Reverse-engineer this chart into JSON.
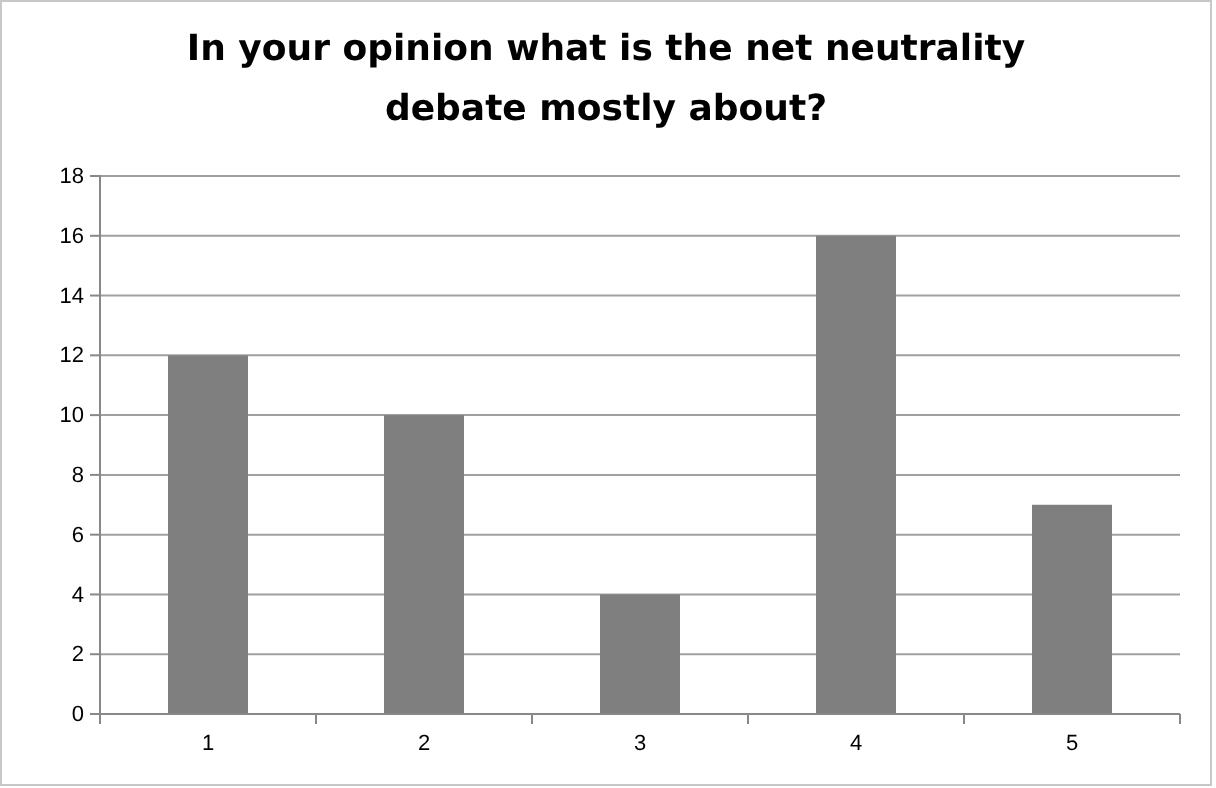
{
  "chart_data": {
    "type": "bar",
    "title": "In your opinion what is the net neutrality debate mostly about?",
    "categories": [
      "1",
      "2",
      "3",
      "4",
      "5"
    ],
    "values": [
      12,
      10,
      4,
      16,
      7
    ],
    "color": "#7f7f7f",
    "ylim": [
      0,
      18
    ],
    "yticks": [
      0,
      2,
      4,
      6,
      8,
      10,
      12,
      14,
      16,
      18
    ],
    "grid": "y"
  }
}
